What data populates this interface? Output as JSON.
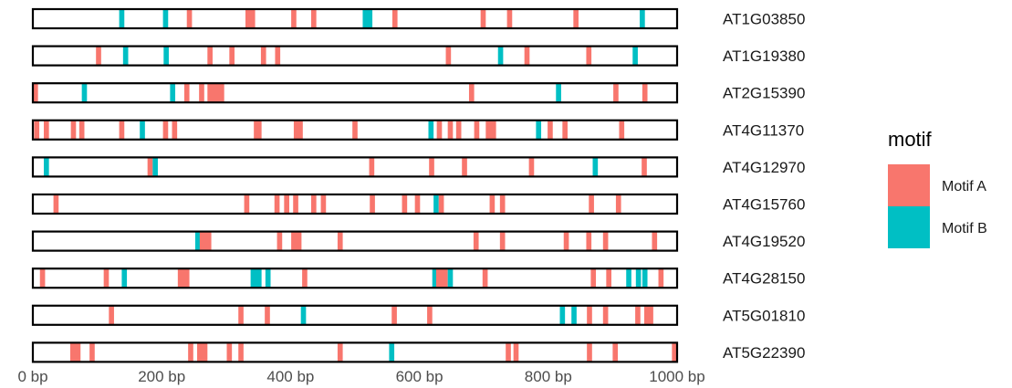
{
  "chart_data": {
    "type": "motif-map",
    "title": "",
    "xlabel": "",
    "ylabel": "",
    "xlim": [
      0,
      1000
    ],
    "x_ticks": [
      0,
      200,
      400,
      600,
      800,
      1000
    ],
    "x_tick_labels": [
      "0 bp",
      "200 bp",
      "400 bp",
      "600 bp",
      "800 bp",
      "1000 bp"
    ],
    "legend": {
      "title": "motif",
      "placement": "right",
      "entries": [
        {
          "key": "A",
          "label": "Motif A",
          "color": "#F8766D"
        },
        {
          "key": "B",
          "label": "Motif B",
          "color": "#00BFC4"
        }
      ]
    },
    "sequences": [
      {
        "name": "AT1G03850",
        "length": 1000,
        "motifs": [
          {
            "type": "B",
            "start": 134,
            "end": 142
          },
          {
            "type": "B",
            "start": 202,
            "end": 210
          },
          {
            "type": "A",
            "start": 239,
            "end": 247
          },
          {
            "type": "A",
            "start": 330,
            "end": 345
          },
          {
            "type": "A",
            "start": 401,
            "end": 409
          },
          {
            "type": "A",
            "start": 432,
            "end": 440
          },
          {
            "type": "B",
            "start": 512,
            "end": 520
          },
          {
            "type": "B",
            "start": 519,
            "end": 527
          },
          {
            "type": "A",
            "start": 558,
            "end": 566
          },
          {
            "type": "A",
            "start": 695,
            "end": 703
          },
          {
            "type": "A",
            "start": 736,
            "end": 744
          },
          {
            "type": "A",
            "start": 839,
            "end": 847
          },
          {
            "type": "B",
            "start": 942,
            "end": 950
          }
        ]
      },
      {
        "name": "AT1G19380",
        "length": 1000,
        "motifs": [
          {
            "type": "A",
            "start": 98,
            "end": 106
          },
          {
            "type": "B",
            "start": 140,
            "end": 148
          },
          {
            "type": "B",
            "start": 203,
            "end": 211
          },
          {
            "type": "A",
            "start": 271,
            "end": 279
          },
          {
            "type": "A",
            "start": 305,
            "end": 313
          },
          {
            "type": "A",
            "start": 354,
            "end": 362
          },
          {
            "type": "A",
            "start": 376,
            "end": 384
          },
          {
            "type": "A",
            "start": 641,
            "end": 649
          },
          {
            "type": "B",
            "start": 722,
            "end": 730
          },
          {
            "type": "A",
            "start": 763,
            "end": 771
          },
          {
            "type": "A",
            "start": 859,
            "end": 867
          },
          {
            "type": "B",
            "start": 931,
            "end": 939
          }
        ]
      },
      {
        "name": "AT2G15390",
        "length": 1000,
        "motifs": [
          {
            "type": "A",
            "start": 0,
            "end": 8
          },
          {
            "type": "B",
            "start": 76,
            "end": 84
          },
          {
            "type": "B",
            "start": 213,
            "end": 221
          },
          {
            "type": "A",
            "start": 235,
            "end": 243
          },
          {
            "type": "A",
            "start": 258,
            "end": 266
          },
          {
            "type": "A",
            "start": 271,
            "end": 297
          },
          {
            "type": "A",
            "start": 677,
            "end": 685
          },
          {
            "type": "B",
            "start": 812,
            "end": 820
          },
          {
            "type": "A",
            "start": 901,
            "end": 909
          },
          {
            "type": "A",
            "start": 946,
            "end": 954
          }
        ]
      },
      {
        "name": "AT4G11370",
        "length": 1000,
        "motifs": [
          {
            "type": "A",
            "start": 2,
            "end": 10
          },
          {
            "type": "A",
            "start": 17,
            "end": 25
          },
          {
            "type": "A",
            "start": 59,
            "end": 67
          },
          {
            "type": "A",
            "start": 72,
            "end": 80
          },
          {
            "type": "A",
            "start": 134,
            "end": 142
          },
          {
            "type": "B",
            "start": 166,
            "end": 174
          },
          {
            "type": "A",
            "start": 202,
            "end": 210
          },
          {
            "type": "A",
            "start": 216,
            "end": 224
          },
          {
            "type": "A",
            "start": 343,
            "end": 355
          },
          {
            "type": "A",
            "start": 405,
            "end": 419
          },
          {
            "type": "A",
            "start": 496,
            "end": 504
          },
          {
            "type": "B",
            "start": 614,
            "end": 622
          },
          {
            "type": "A",
            "start": 627,
            "end": 635
          },
          {
            "type": "A",
            "start": 644,
            "end": 652
          },
          {
            "type": "A",
            "start": 657,
            "end": 665
          },
          {
            "type": "A",
            "start": 685,
            "end": 693
          },
          {
            "type": "A",
            "start": 703,
            "end": 719
          },
          {
            "type": "B",
            "start": 781,
            "end": 789
          },
          {
            "type": "A",
            "start": 799,
            "end": 807
          },
          {
            "type": "A",
            "start": 822,
            "end": 830
          },
          {
            "type": "A",
            "start": 910,
            "end": 918
          }
        ]
      },
      {
        "name": "AT4G12970",
        "length": 1000,
        "motifs": [
          {
            "type": "B",
            "start": 17,
            "end": 25
          },
          {
            "type": "A",
            "start": 178,
            "end": 186
          },
          {
            "type": "B",
            "start": 186,
            "end": 194
          },
          {
            "type": "A",
            "start": 522,
            "end": 530
          },
          {
            "type": "A",
            "start": 615,
            "end": 623
          },
          {
            "type": "A",
            "start": 666,
            "end": 674
          },
          {
            "type": "A",
            "start": 770,
            "end": 778
          },
          {
            "type": "B",
            "start": 869,
            "end": 877
          },
          {
            "type": "A",
            "start": 945,
            "end": 953
          }
        ]
      },
      {
        "name": "AT4G15760",
        "length": 1000,
        "motifs": [
          {
            "type": "A",
            "start": 32,
            "end": 40
          },
          {
            "type": "A",
            "start": 328,
            "end": 336
          },
          {
            "type": "A",
            "start": 375,
            "end": 383
          },
          {
            "type": "A",
            "start": 390,
            "end": 398
          },
          {
            "type": "A",
            "start": 404,
            "end": 412
          },
          {
            "type": "A",
            "start": 432,
            "end": 440
          },
          {
            "type": "A",
            "start": 447,
            "end": 455
          },
          {
            "type": "A",
            "start": 523,
            "end": 531
          },
          {
            "type": "A",
            "start": 573,
            "end": 581
          },
          {
            "type": "A",
            "start": 593,
            "end": 601
          },
          {
            "type": "B",
            "start": 622,
            "end": 630
          },
          {
            "type": "A",
            "start": 630,
            "end": 638
          },
          {
            "type": "A",
            "start": 709,
            "end": 717
          },
          {
            "type": "A",
            "start": 725,
            "end": 733
          },
          {
            "type": "A",
            "start": 863,
            "end": 871
          },
          {
            "type": "A",
            "start": 905,
            "end": 913
          }
        ]
      },
      {
        "name": "AT4G19520",
        "length": 1000,
        "motifs": [
          {
            "type": "B",
            "start": 252,
            "end": 260
          },
          {
            "type": "A",
            "start": 259,
            "end": 277
          },
          {
            "type": "A",
            "start": 379,
            "end": 387
          },
          {
            "type": "A",
            "start": 401,
            "end": 417
          },
          {
            "type": "A",
            "start": 473,
            "end": 481
          },
          {
            "type": "A",
            "start": 684,
            "end": 692
          },
          {
            "type": "A",
            "start": 725,
            "end": 733
          },
          {
            "type": "A",
            "start": 824,
            "end": 832
          },
          {
            "type": "A",
            "start": 859,
            "end": 867
          },
          {
            "type": "A",
            "start": 885,
            "end": 893
          },
          {
            "type": "A",
            "start": 961,
            "end": 969
          }
        ]
      },
      {
        "name": "AT4G28150",
        "length": 1000,
        "motifs": [
          {
            "type": "A",
            "start": 11,
            "end": 19
          },
          {
            "type": "A",
            "start": 110,
            "end": 118
          },
          {
            "type": "B",
            "start": 138,
            "end": 146
          },
          {
            "type": "A",
            "start": 225,
            "end": 243
          },
          {
            "type": "B",
            "start": 338,
            "end": 355
          },
          {
            "type": "B",
            "start": 361,
            "end": 369
          },
          {
            "type": "A",
            "start": 418,
            "end": 426
          },
          {
            "type": "B",
            "start": 620,
            "end": 628
          },
          {
            "type": "A",
            "start": 626,
            "end": 644
          },
          {
            "type": "B",
            "start": 644,
            "end": 652
          },
          {
            "type": "A",
            "start": 698,
            "end": 706
          },
          {
            "type": "A",
            "start": 866,
            "end": 874
          },
          {
            "type": "A",
            "start": 890,
            "end": 898
          },
          {
            "type": "B",
            "start": 921,
            "end": 929
          },
          {
            "type": "B",
            "start": 936,
            "end": 944
          },
          {
            "type": "B",
            "start": 946,
            "end": 954
          },
          {
            "type": "A",
            "start": 971,
            "end": 979
          }
        ]
      },
      {
        "name": "AT5G01810",
        "length": 1000,
        "motifs": [
          {
            "type": "A",
            "start": 118,
            "end": 126
          },
          {
            "type": "A",
            "start": 319,
            "end": 327
          },
          {
            "type": "A",
            "start": 360,
            "end": 368
          },
          {
            "type": "B",
            "start": 416,
            "end": 424
          },
          {
            "type": "A",
            "start": 557,
            "end": 565
          },
          {
            "type": "A",
            "start": 612,
            "end": 620
          },
          {
            "type": "B",
            "start": 818,
            "end": 826
          },
          {
            "type": "B",
            "start": 836,
            "end": 844
          },
          {
            "type": "A",
            "start": 860,
            "end": 868
          },
          {
            "type": "A",
            "start": 885,
            "end": 893
          },
          {
            "type": "A",
            "start": 935,
            "end": 943
          },
          {
            "type": "A",
            "start": 949,
            "end": 963
          }
        ]
      },
      {
        "name": "AT5G22390",
        "length": 1000,
        "motifs": [
          {
            "type": "A",
            "start": 58,
            "end": 74
          },
          {
            "type": "A",
            "start": 88,
            "end": 96
          },
          {
            "type": "A",
            "start": 241,
            "end": 249
          },
          {
            "type": "A",
            "start": 255,
            "end": 271
          },
          {
            "type": "A",
            "start": 301,
            "end": 309
          },
          {
            "type": "A",
            "start": 319,
            "end": 327
          },
          {
            "type": "A",
            "start": 473,
            "end": 481
          },
          {
            "type": "B",
            "start": 553,
            "end": 561
          },
          {
            "type": "A",
            "start": 734,
            "end": 742
          },
          {
            "type": "A",
            "start": 746,
            "end": 754
          },
          {
            "type": "A",
            "start": 860,
            "end": 868
          },
          {
            "type": "A",
            "start": 900,
            "end": 908
          },
          {
            "type": "A",
            "start": 992,
            "end": 1000
          }
        ]
      }
    ]
  }
}
